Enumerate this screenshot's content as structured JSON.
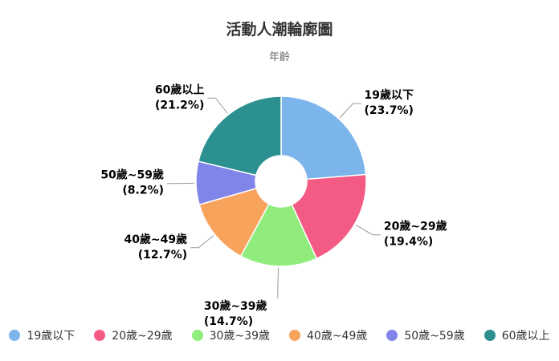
{
  "chart_data": {
    "type": "pie",
    "title": "活動人潮輪廓圖",
    "subtitle": "年齡",
    "legend_position": "bottom",
    "slices": [
      {
        "label": "19歲以下",
        "value": 23.7,
        "value_text": "(23.7%)",
        "color": "#7cb5ec"
      },
      {
        "label": "20歲~29歲",
        "value": 19.4,
        "value_text": "(19.4%)",
        "color": "#f45b84"
      },
      {
        "label": "30歲~39歲",
        "value": 14.7,
        "value_text": "(14.7%)",
        "color": "#90ed7d"
      },
      {
        "label": "40歲~49歲",
        "value": 12.7,
        "value_text": "(12.7%)",
        "color": "#f7a35c"
      },
      {
        "label": "50歲~59歲",
        "value": 8.2,
        "value_text": "(8.2%)",
        "color": "#8085e9"
      },
      {
        "label": "60歲以上",
        "value": 21.2,
        "value_text": "(21.2%)",
        "color": "#2b908f"
      }
    ]
  }
}
